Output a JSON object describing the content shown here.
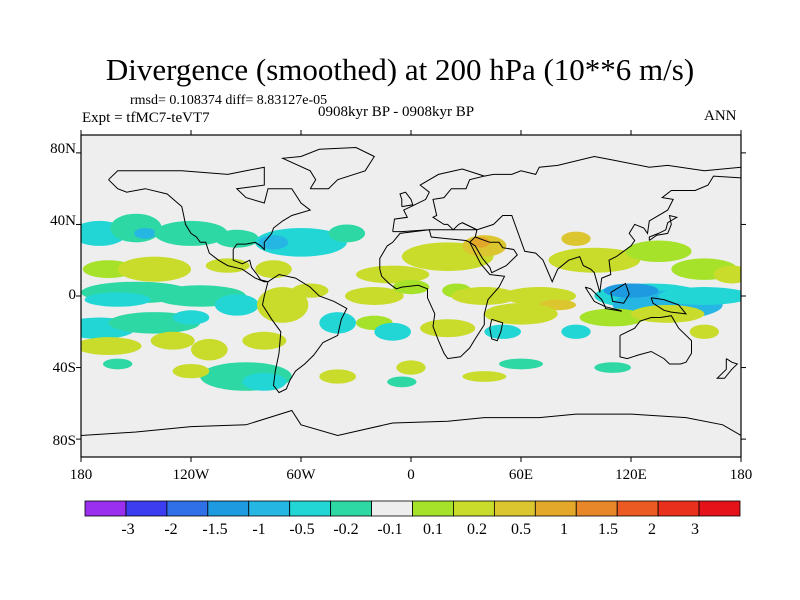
{
  "title": "Divergence (smoothed) at 200 hPa (10**6 m/s)",
  "stats": "rmsd= 0.108374 diff= 8.83127e-05",
  "experiment": "Expt = tfMC7-teVT7",
  "period": "0908kyr BP - 0908kyr BP",
  "season": "ANN",
  "map": {
    "lon_range": [
      -180,
      180
    ],
    "lat_range": [
      -90,
      90
    ],
    "y_ticks": [
      "80N",
      "40N",
      "0",
      "40S",
      "80S"
    ],
    "x_ticks": [
      "180",
      "120W",
      "60W",
      "0",
      "60E",
      "120E",
      "180"
    ],
    "background_color": "#eeeeee"
  },
  "colorbar": {
    "colors": [
      "#9b2ff0",
      "#3c3cf0",
      "#2f6fe8",
      "#1e9be0",
      "#25b6e4",
      "#23d6d6",
      "#2ed8a4",
      "#eeeeee",
      "#a6e22a",
      "#c9dc2c",
      "#dcc630",
      "#e3a82a",
      "#e8862a",
      "#ea5a22",
      "#e8301c",
      "#e6121a"
    ],
    "labels": [
      "-3",
      "-2",
      "-1.5",
      "-1",
      "-0.5",
      "-0.2",
      "-0.1",
      "0.1",
      "0.2",
      "0.5",
      "1",
      "1.5",
      "2",
      "3"
    ]
  }
}
